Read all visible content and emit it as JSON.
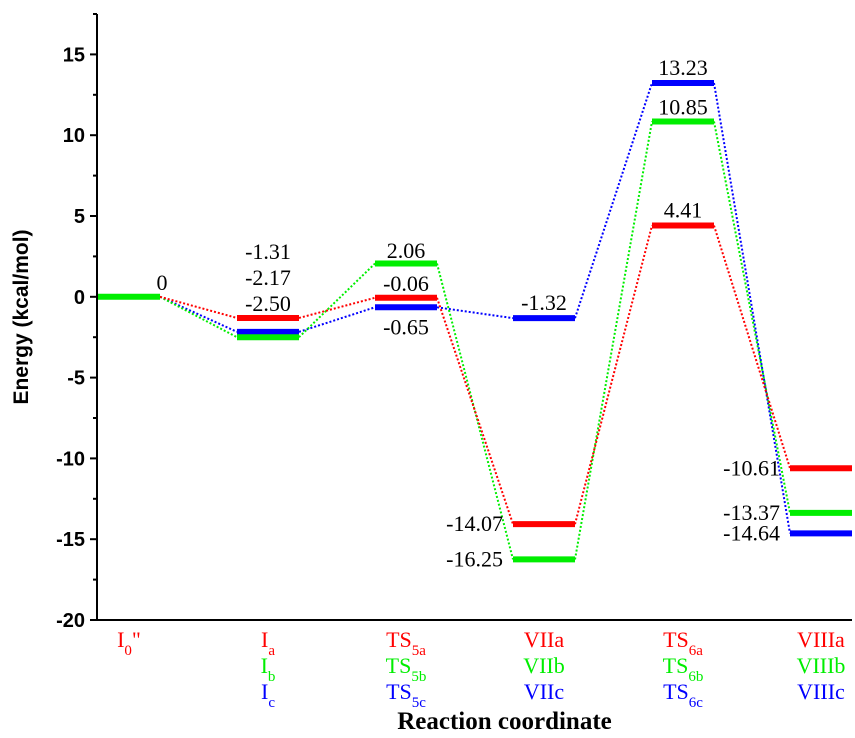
{
  "chart_data": {
    "type": "line",
    "ylabel": "Energy (kcal/mol)",
    "xlabel": "Reaction coordinate",
    "ylim": [
      -20,
      17.5
    ],
    "yticks": [
      15,
      10,
      5,
      0,
      -5,
      -10,
      -15,
      -20
    ],
    "ytick_labels": [
      "15",
      "10",
      "5",
      "0",
      "-5",
      "-10",
      "-15",
      "-20"
    ],
    "grid": false,
    "colors": {
      "a": "#ff0000",
      "b": "#00ee00",
      "c": "#0000ff"
    },
    "start": {
      "value": 0,
      "label": "0"
    },
    "categories": [
      {
        "labels": [
          {
            "base": "I",
            "sub": "0",
            "tail": "\"",
            "color": "a"
          }
        ]
      },
      {
        "labels": [
          {
            "base": "I",
            "sub": "a",
            "tail": "",
            "color": "a"
          },
          {
            "base": "I",
            "sub": "b",
            "tail": "",
            "color": "b"
          },
          {
            "base": "I",
            "sub": "c",
            "tail": "",
            "color": "c"
          }
        ]
      },
      {
        "labels": [
          {
            "base": "TS",
            "sub": "5a",
            "tail": "",
            "color": "a"
          },
          {
            "base": "TS",
            "sub": "5b",
            "tail": "",
            "color": "b"
          },
          {
            "base": "TS",
            "sub": "5c",
            "tail": "",
            "color": "c"
          }
        ]
      },
      {
        "labels": [
          {
            "base": "VIIa",
            "sub": "",
            "tail": "",
            "color": "a"
          },
          {
            "base": "VIIb",
            "sub": "",
            "tail": "",
            "color": "b"
          },
          {
            "base": "VIIc",
            "sub": "",
            "tail": "",
            "color": "c"
          }
        ]
      },
      {
        "labels": [
          {
            "base": "TS",
            "sub": "6a",
            "tail": "",
            "color": "a"
          },
          {
            "base": "TS",
            "sub": "6b",
            "tail": "",
            "color": "b"
          },
          {
            "base": "TS",
            "sub": "6c",
            "tail": "",
            "color": "c"
          }
        ]
      },
      {
        "labels": [
          {
            "base": "VIIIa",
            "sub": "",
            "tail": "",
            "color": "a"
          },
          {
            "base": "VIIIb",
            "sub": "",
            "tail": "",
            "color": "b"
          },
          {
            "base": "VIIIc",
            "sub": "",
            "tail": "",
            "color": "c"
          }
        ]
      }
    ],
    "series": [
      {
        "key": "a",
        "values": [
          0,
          -1.31,
          -0.06,
          -14.07,
          4.41,
          -10.61
        ],
        "value_labels": [
          "0",
          "-1.31",
          "-0.06",
          "-14.07",
          "4.41",
          "-10.61"
        ]
      },
      {
        "key": "b",
        "values": [
          0,
          -2.5,
          2.06,
          -16.25,
          10.85,
          -13.37
        ],
        "value_labels": [
          "0",
          "-2.50",
          "2.06",
          "-16.25",
          "10.85",
          "-13.37"
        ]
      },
      {
        "key": "c",
        "values": [
          0,
          -2.17,
          -0.65,
          -1.32,
          13.23,
          -14.64
        ],
        "value_labels": [
          "0",
          "-2.17",
          "-0.65",
          "-1.32",
          "13.23",
          "-14.64"
        ]
      }
    ],
    "group_labels": [
      {
        "index": 1,
        "lines": [
          "-1.31",
          "-2.17",
          "-2.50"
        ]
      },
      {
        "index": 2,
        "lines": [
          "2.06",
          "-0.06"
        ]
      }
    ],
    "single_labels": [
      {
        "index": 0,
        "series": "b",
        "text": "0"
      },
      {
        "index": 2,
        "series": "c",
        "text": "-0.65"
      },
      {
        "index": 3,
        "series": "a",
        "text": "-14.07"
      },
      {
        "index": 3,
        "series": "b",
        "text": "-16.25"
      },
      {
        "index": 3,
        "series": "c",
        "text": "-1.32"
      },
      {
        "index": 4,
        "series": "a",
        "text": "4.41"
      },
      {
        "index": 4,
        "series": "b",
        "text": "10.85"
      },
      {
        "index": 4,
        "series": "c",
        "text": "13.23"
      },
      {
        "index": 5,
        "series": "a",
        "text": "-10.61"
      },
      {
        "index": 5,
        "series": "b",
        "text": "-13.37"
      },
      {
        "index": 5,
        "series": "c",
        "text": "-14.64"
      }
    ],
    "omit_levels": [
      {
        "index": 3,
        "series": "c"
      },
      {
        "index": 0,
        "series": "a"
      },
      {
        "index": 0,
        "series": "c"
      }
    ]
  }
}
